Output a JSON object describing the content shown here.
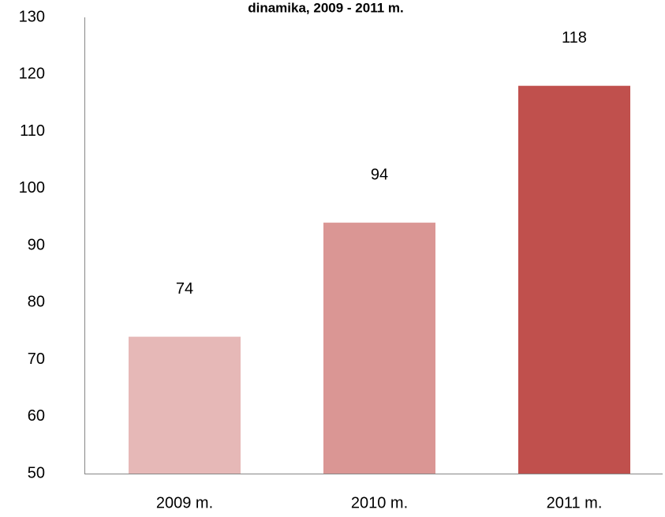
{
  "chart_data": {
    "type": "bar",
    "title": "dinamika, 2009 - 2011 m.",
    "categories": [
      "2009 m.",
      "2010 m.",
      "2011 m."
    ],
    "values": [
      74,
      94,
      118
    ],
    "colors": [
      "#e6b8b7",
      "#da9694",
      "#c0504d"
    ],
    "ylim": [
      50,
      130
    ],
    "yticks": [
      50,
      60,
      70,
      80,
      90,
      100,
      110,
      120,
      130
    ],
    "grid": false
  }
}
